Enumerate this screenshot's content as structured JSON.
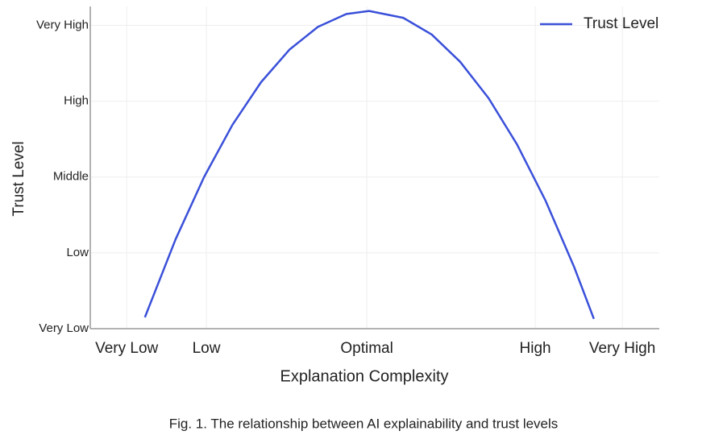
{
  "chart_data": {
    "type": "line",
    "x_label": "Explanation Complexity",
    "y_label": "Trust Level",
    "caption": "Fig. 1. The relationship between AI explainability and trust levels",
    "x": [
      9.6,
      15,
      20,
      25,
      30,
      35,
      40,
      45,
      49,
      55,
      60,
      65,
      70,
      75,
      80,
      85,
      88.5
    ],
    "series": [
      {
        "name": "Trust Level",
        "color": "#3a50d9",
        "values": [
          0.15,
          1.18,
          2.0,
          2.69,
          3.25,
          3.68,
          3.98,
          4.15,
          4.19,
          4.1,
          3.88,
          3.52,
          3.04,
          2.43,
          1.69,
          0.82,
          0.13
        ]
      }
    ],
    "xlim": [
      0,
      100
    ],
    "xticks": [
      {
        "value": 6.4,
        "label": "Very Low"
      },
      {
        "value": 20.4,
        "label": "Low"
      },
      {
        "value": 48.6,
        "label": "Optimal"
      },
      {
        "value": 78.2,
        "label": "High"
      },
      {
        "value": 93.5,
        "label": "Very High"
      }
    ],
    "ylim": [
      0,
      4.25
    ],
    "yticks": [
      {
        "value": 0,
        "label": "Very Low"
      },
      {
        "value": 1,
        "label": "Low"
      },
      {
        "value": 2,
        "label": "Middle"
      },
      {
        "value": 3,
        "label": "High"
      },
      {
        "value": 4,
        "label": "Very High"
      }
    ],
    "grid": true,
    "legend": "upper right"
  }
}
